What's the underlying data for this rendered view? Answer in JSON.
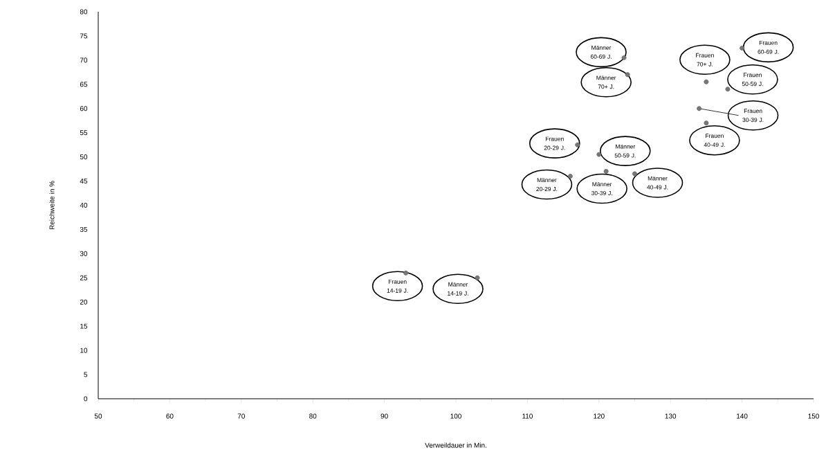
{
  "chart_data": {
    "type": "scatter",
    "xlabel": "Verweildauer in Min.",
    "ylabel": "Reichweite in %",
    "x": [
      123.5,
      124,
      140,
      135,
      138,
      134,
      135,
      117,
      120,
      116,
      121,
      125,
      93,
      103
    ],
    "values": [
      70.5,
      67,
      72.5,
      65.5,
      64,
      60,
      57,
      52.5,
      50.5,
      46,
      47,
      46.5,
      26,
      25
    ],
    "color": "#777777",
    "marker": "circle",
    "grid": false,
    "xlim": [
      50,
      150
    ],
    "xticks": [
      50,
      60,
      70,
      80,
      90,
      100,
      110,
      120,
      130,
      140,
      150
    ],
    "ylim": [
      0,
      80
    ],
    "yticks": [
      0,
      5,
      10,
      15,
      20,
      25,
      30,
      35,
      40,
      45,
      50,
      55,
      60,
      65,
      70,
      75,
      80
    ],
    "annotations": [
      {
        "text": "Männer 60-69 J.",
        "x": 123.5,
        "y": 70.5
      },
      {
        "text": "Männer 70+ J.",
        "x": 124,
        "y": 67
      },
      {
        "text": "Frauen 60-69 J.",
        "x": 140,
        "y": 72.5
      },
      {
        "text": "Frauen 70+ J.",
        "x": 135,
        "y": 65.5
      },
      {
        "text": "Frauen 50-59 J.",
        "x": 138,
        "y": 64
      },
      {
        "text": "Frauen 30-39 J.",
        "x": 134,
        "y": 60
      },
      {
        "text": "Frauen 40-49 J.",
        "x": 135,
        "y": 57
      },
      {
        "text": "Frauen 20-29 J.",
        "x": 117,
        "y": 52.5
      },
      {
        "text": "Männer 50-59 J.",
        "x": 120,
        "y": 50.5
      },
      {
        "text": "Männer 20-29 J.",
        "x": 116,
        "y": 46
      },
      {
        "text": "Männer 30-39 J.",
        "x": 121,
        "y": 47
      },
      {
        "text": "Männer 40-49 J.",
        "x": 125,
        "y": 46.5
      },
      {
        "text": "Frauen 14-19 J.",
        "x": 93,
        "y": 26
      },
      {
        "text": "Männer 14-19 J.",
        "x": 103,
        "y": 25
      }
    ]
  }
}
